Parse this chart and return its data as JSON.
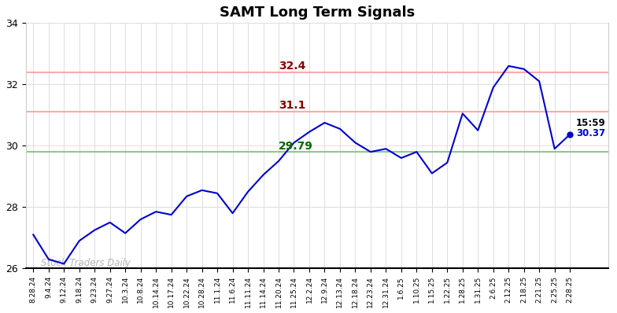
{
  "title": "SAMT Long Term Signals",
  "watermark": "Stock Traders Daily",
  "hline_upper": 32.4,
  "hline_middle": 31.1,
  "hline_lower": 29.79,
  "hline_upper_color": "#ffaaaa",
  "hline_middle_color": "#ffaaaa",
  "hline_lower_color": "#88cc88",
  "label_upper": "32.4",
  "label_middle": "31.1",
  "label_lower": "29.79",
  "label_upper_color": "#880000",
  "label_middle_color": "#880000",
  "label_lower_color": "#006600",
  "last_time": "15:59",
  "last_value": "30.37",
  "ylim": [
    26,
    34
  ],
  "yticks": [
    26,
    28,
    30,
    32,
    34
  ],
  "line_color": "#0000cc",
  "dot_color": "#0000cc",
  "x_labels": [
    "8.28.24",
    "9.4.24",
    "9.12.24",
    "9.18.24",
    "9.23.24",
    "9.27.24",
    "10.3.24",
    "10.8.24",
    "10.14.24",
    "10.17.24",
    "10.22.24",
    "10.28.24",
    "11.1.24",
    "11.6.24",
    "11.11.24",
    "11.14.24",
    "11.20.24",
    "11.25.24",
    "12.2.24",
    "12.9.24",
    "12.13.24",
    "12.18.24",
    "12.23.24",
    "12.31.24",
    "1.6.25",
    "1.10.25",
    "1.15.25",
    "1.22.25",
    "1.28.25",
    "1.31.25",
    "2.6.25",
    "2.12.25",
    "2.18.25",
    "2.21.25",
    "2.25.25",
    "2.28.25"
  ],
  "y_values": [
    27.1,
    26.3,
    26.15,
    26.9,
    27.25,
    27.5,
    27.15,
    27.6,
    27.85,
    27.75,
    28.35,
    28.55,
    28.45,
    27.8,
    28.5,
    29.05,
    29.5,
    30.1,
    30.45,
    30.75,
    30.55,
    30.1,
    29.8,
    29.9,
    29.6,
    29.8,
    29.1,
    29.45,
    31.05,
    30.5,
    31.9,
    32.6,
    32.5,
    32.1,
    29.9,
    30.37
  ],
  "figsize": [
    7.84,
    3.98
  ],
  "dpi": 100
}
